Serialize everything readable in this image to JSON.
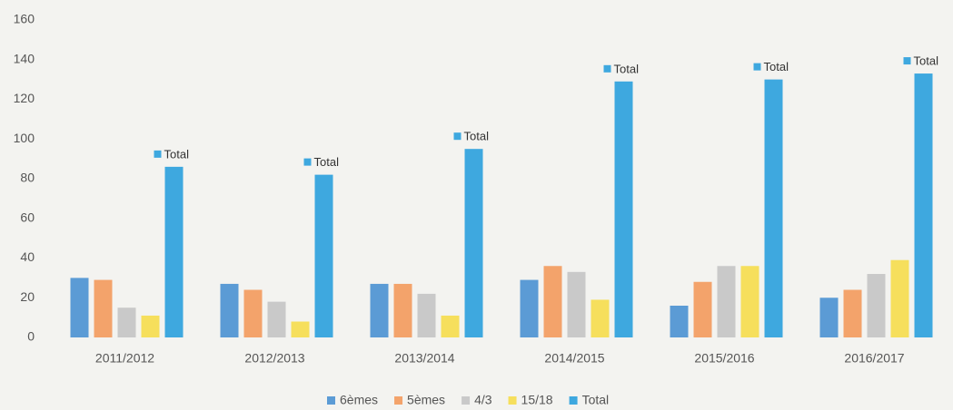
{
  "chart_data": {
    "type": "bar",
    "categories": [
      "2011/2012",
      "2012/2013",
      "2013/2014",
      "2014/2015",
      "2015/2016",
      "2016/2017"
    ],
    "series": [
      {
        "name": "6èmes",
        "color": "#5b9bd5",
        "values": [
          30,
          27,
          27,
          29,
          16,
          20
        ]
      },
      {
        "name": "5èmes",
        "color": "#f3a36b",
        "values": [
          29,
          24,
          27,
          36,
          28,
          24
        ]
      },
      {
        "name": "4/3",
        "color": "#c9c9c9",
        "values": [
          15,
          18,
          22,
          33,
          36,
          32
        ]
      },
      {
        "name": "15/18",
        "color": "#f6df5c",
        "values": [
          11,
          8,
          11,
          19,
          36,
          39
        ]
      },
      {
        "name": "Total",
        "color": "#3ea8df",
        "values": [
          86,
          82,
          95,
          129,
          130,
          133
        ]
      }
    ],
    "ylim": [
      0,
      160
    ],
    "yticks": [
      0,
      20,
      40,
      60,
      80,
      100,
      120,
      140,
      160
    ],
    "legend": "bottom"
  }
}
